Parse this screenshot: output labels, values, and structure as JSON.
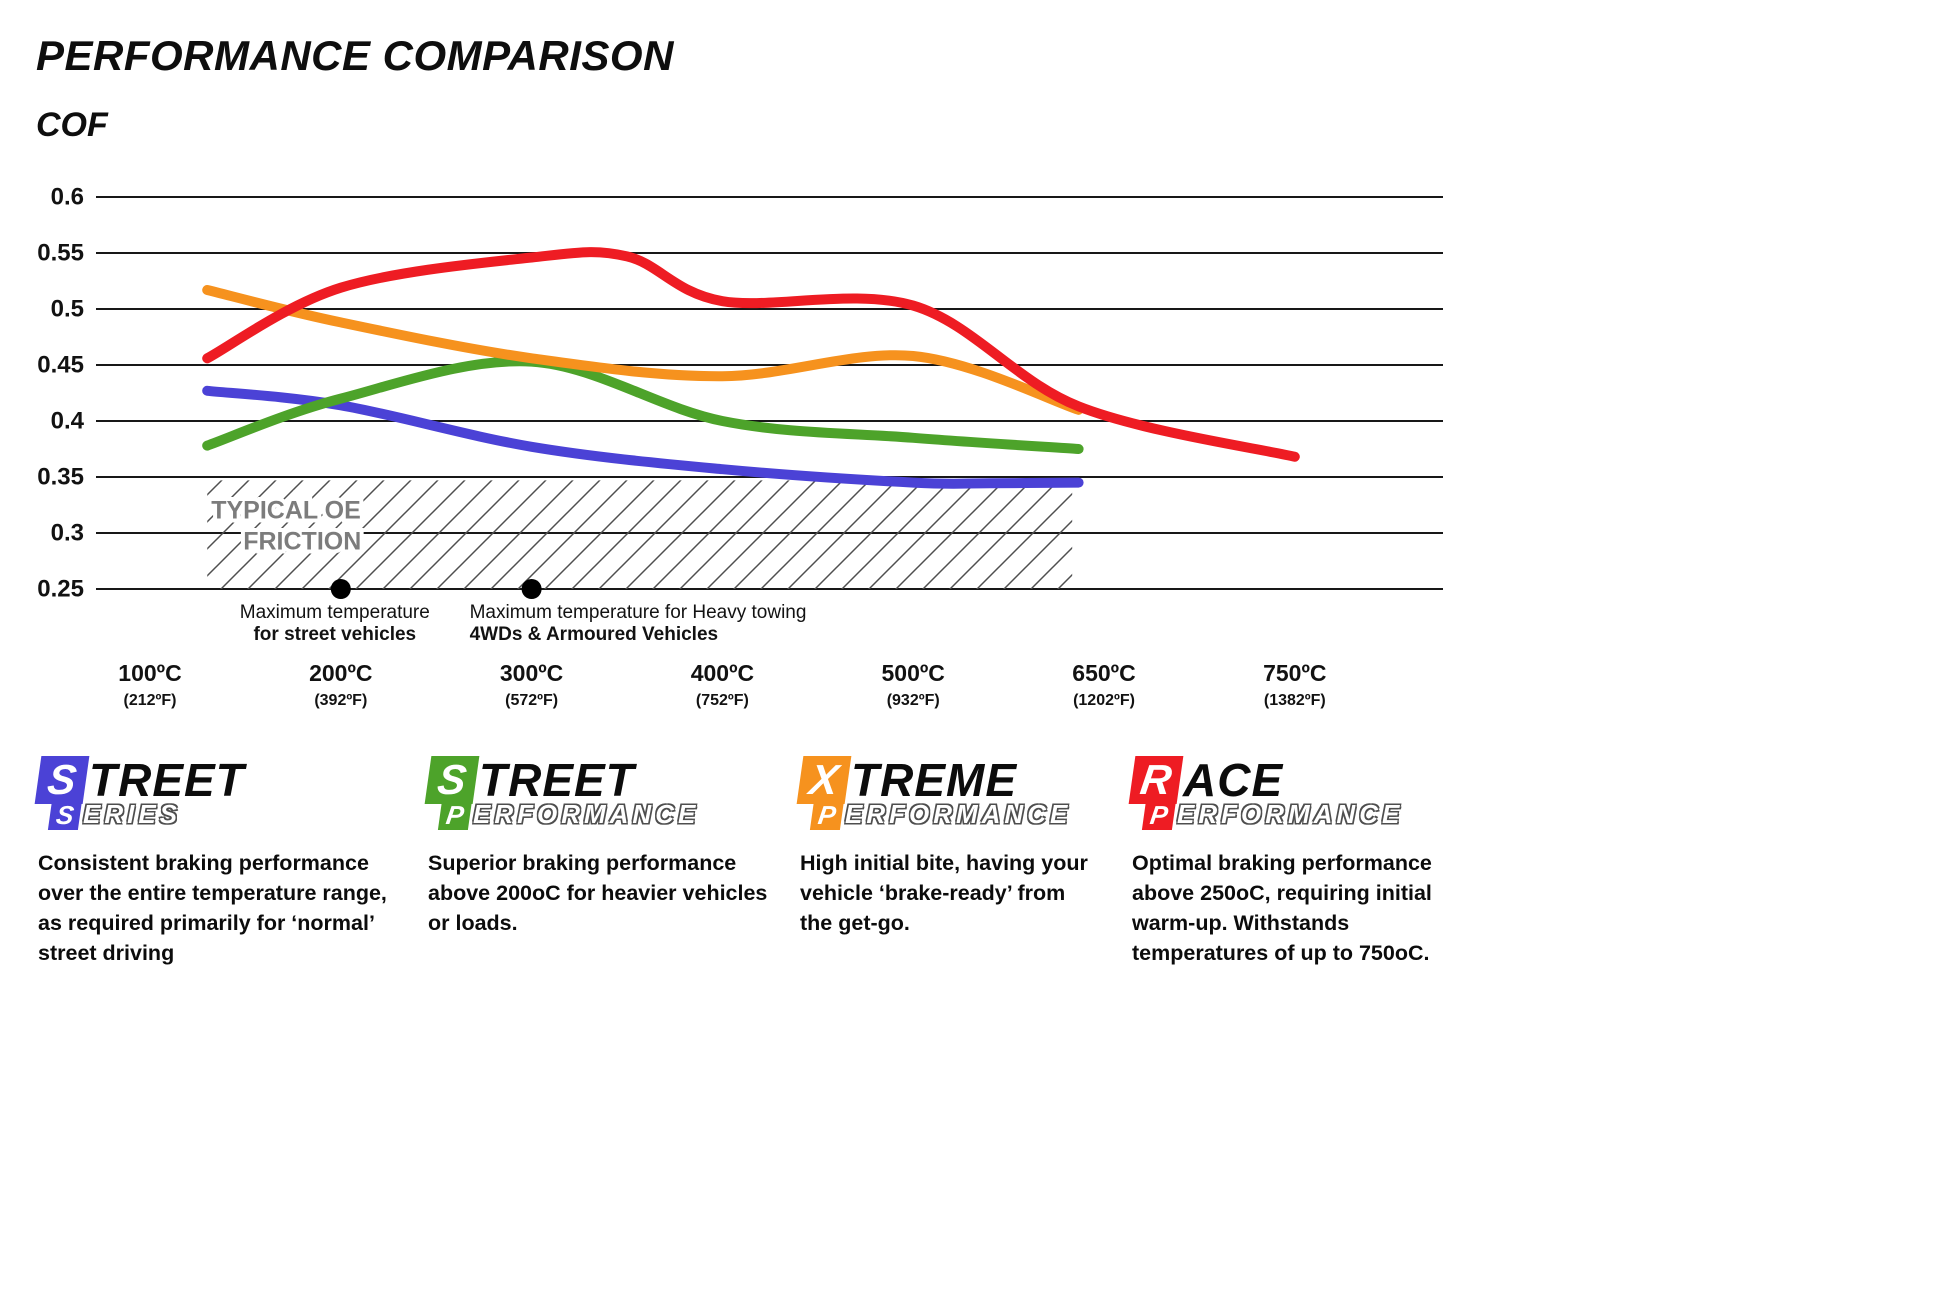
{
  "chart_data": {
    "type": "line",
    "title": "PERFORMANCE COMPARISON",
    "ylabel": "COF",
    "ylim": [
      0.25,
      0.6
    ],
    "yticks": [
      "0.6",
      "0.55",
      "0.5",
      "0.45",
      "0.4",
      "0.35",
      "0.3",
      "0.25"
    ],
    "ytick_values": [
      0.6,
      0.55,
      0.5,
      0.45,
      0.4,
      0.35,
      0.3,
      0.25
    ],
    "grid": true,
    "legend_position": "bottom",
    "x_categories": [
      {
        "temp": 100,
        "label": "100ºC",
        "fahrenheit": "(212ºF)"
      },
      {
        "temp": 200,
        "label": "200ºC",
        "fahrenheit": "(392ºF)"
      },
      {
        "temp": 300,
        "label": "300ºC",
        "fahrenheit": "(572ºF)"
      },
      {
        "temp": 400,
        "label": "400ºC",
        "fahrenheit": "(752ºF)"
      },
      {
        "temp": 500,
        "label": "500ºC",
        "fahrenheit": "(932ºF)"
      },
      {
        "temp": 650,
        "label": "650ºC",
        "fahrenheit": "(1202ºF)"
      },
      {
        "temp": 750,
        "label": "750ºC",
        "fahrenheit": "(1382ºF)"
      }
    ],
    "series": [
      {
        "name": "Street Series",
        "color": "#4b42d6",
        "points": [
          [
            130,
            0.427
          ],
          [
            200,
            0.414
          ],
          [
            300,
            0.377
          ],
          [
            400,
            0.357
          ],
          [
            500,
            0.345
          ],
          [
            560,
            0.3445
          ],
          [
            630,
            0.345
          ]
        ]
      },
      {
        "name": "Street Performance",
        "color": "#4da32a",
        "points": [
          [
            130,
            0.378
          ],
          [
            200,
            0.42
          ],
          [
            300,
            0.453
          ],
          [
            400,
            0.4
          ],
          [
            500,
            0.385
          ],
          [
            630,
            0.375
          ]
        ]
      },
      {
        "name": "Xtreme Performance",
        "color": "#f6921e",
        "points": [
          [
            130,
            0.517
          ],
          [
            200,
            0.488
          ],
          [
            300,
            0.456
          ],
          [
            400,
            0.44
          ],
          [
            500,
            0.458
          ],
          [
            630,
            0.41
          ]
        ]
      },
      {
        "name": "Race Performance",
        "color": "#ee1c23",
        "points": [
          [
            130,
            0.456
          ],
          [
            200,
            0.519
          ],
          [
            300,
            0.546
          ],
          [
            350,
            0.547
          ],
          [
            400,
            0.507
          ],
          [
            500,
            0.503
          ],
          [
            630,
            0.413
          ],
          [
            750,
            0.368
          ]
        ]
      }
    ],
    "oe_band": {
      "label_line1": "TYPICAL OE",
      "label_line2": "FRICTION",
      "y_top": 0.347,
      "y_bottom": 0.25,
      "x_start_temp": 130,
      "x_end_temp": 625
    },
    "markers": [
      {
        "id": "street-vehicles",
        "temp": 200,
        "cof": 0.25,
        "align": "center",
        "bold_line": 1,
        "lines": [
          "Maximum temperature",
          "for street vehicles"
        ]
      },
      {
        "id": "heavy-towing",
        "temp": 300,
        "cof": 0.25,
        "align": "left",
        "bold_line": 1,
        "lines": [
          "Maximum temperature for Heavy towing",
          "4WDs & Armoured Vehicles"
        ]
      }
    ]
  },
  "legend": [
    {
      "name": "Street Series",
      "color": "#4b42d6",
      "word1_first": "S",
      "word1_rest": "TREET",
      "word2_first": "S",
      "word2_rest": "ERIES",
      "desc": "Consistent braking performance over the entire temperature range, as required primarily for ‘normal’ street driving"
    },
    {
      "name": "Street Performance",
      "color": "#4da32a",
      "word1_first": "S",
      "word1_rest": "TREET",
      "word2_first": "P",
      "word2_rest": "ERFORMANCE",
      "desc": "Superior braking performance above 200oC for heavier vehicles or loads."
    },
    {
      "name": "Xtreme Performance",
      "color": "#f6921e",
      "word1_first": "X",
      "word1_rest": "TREME",
      "word2_first": "P",
      "word2_rest": "ERFORMANCE",
      "desc": "High initial bite, having your vehicle ‘brake-ready’ from the get-go."
    },
    {
      "name": "Race Performance",
      "color": "#ee1c23",
      "word1_first": "R",
      "word1_rest": "ACE",
      "word2_first": "P",
      "word2_rest": "ERFORMANCE",
      "desc": "Optimal braking performance above 250oC, requiring initial warm-up. Withstands temperatures of up to 750oC."
    }
  ]
}
